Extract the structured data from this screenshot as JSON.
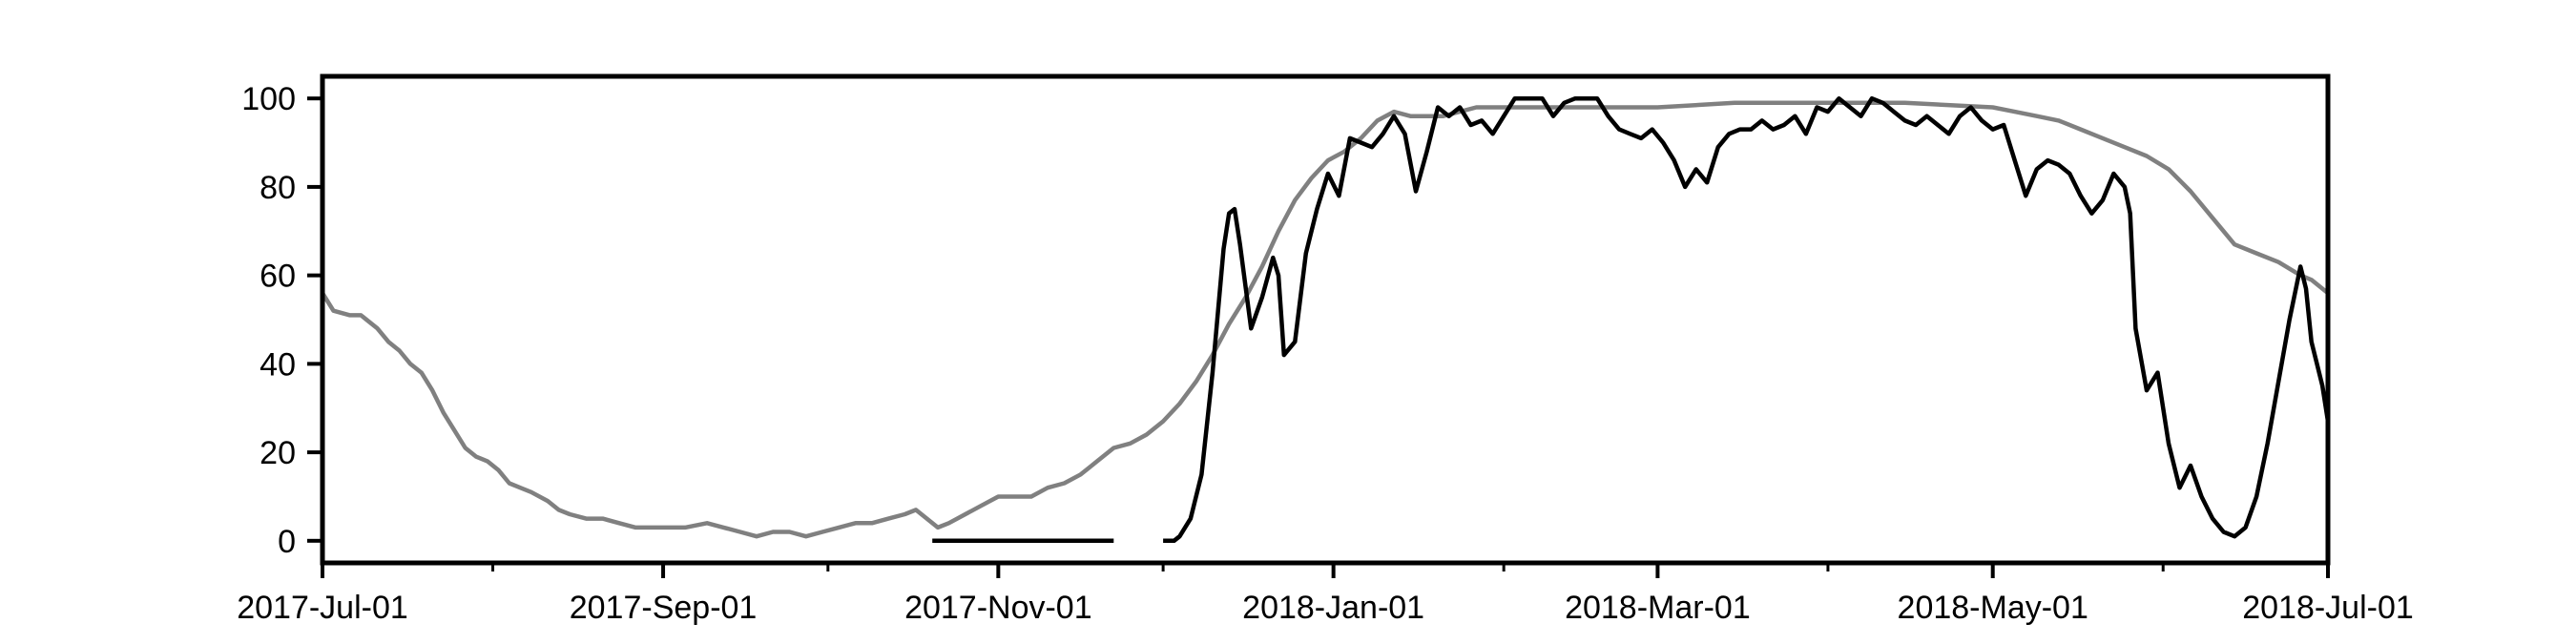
{
  "chart_data": {
    "type": "line",
    "title": "",
    "xlabel": "",
    "ylabel": "",
    "xlim": [
      "2017-07-01",
      "2018-07-01"
    ],
    "ylim": [
      -5,
      105
    ],
    "grid": false,
    "legend": "none",
    "x_tick_labels": [
      "2017-Jul-01",
      "2017-Sep-01",
      "2017-Nov-01",
      "2018-Jan-01",
      "2018-Mar-01",
      "2018-May-01",
      "2018-Jul-01"
    ],
    "x_major_ticks": [
      "2017-07-01",
      "2017-09-01",
      "2017-11-01",
      "2018-01-01",
      "2018-03-01",
      "2018-05-01",
      "2018-07-01"
    ],
    "x_minor_ticks": [
      "2017-08-01",
      "2017-10-01",
      "2017-12-01",
      "2018-02-01",
      "2018-04-01",
      "2018-06-01"
    ],
    "y_ticks": [
      0,
      20,
      40,
      60,
      80,
      100
    ],
    "series": [
      {
        "color": "#808080",
        "points": [
          [
            "2017-07-01",
            56
          ],
          [
            "2017-07-03",
            52
          ],
          [
            "2017-07-06",
            51
          ],
          [
            "2017-07-08",
            51
          ],
          [
            "2017-07-11",
            48
          ],
          [
            "2017-07-13",
            45
          ],
          [
            "2017-07-15",
            43
          ],
          [
            "2017-07-17",
            40
          ],
          [
            "2017-07-19",
            38
          ],
          [
            "2017-07-21",
            34
          ],
          [
            "2017-07-23",
            29
          ],
          [
            "2017-07-25",
            25
          ],
          [
            "2017-07-27",
            21
          ],
          [
            "2017-07-29",
            19
          ],
          [
            "2017-07-31",
            18
          ],
          [
            "2017-08-02",
            16
          ],
          [
            "2017-08-04",
            13
          ],
          [
            "2017-08-06",
            12
          ],
          [
            "2017-08-08",
            11
          ],
          [
            "2017-08-11",
            9
          ],
          [
            "2017-08-13",
            7
          ],
          [
            "2017-08-15",
            6
          ],
          [
            "2017-08-18",
            5
          ],
          [
            "2017-08-21",
            5
          ],
          [
            "2017-08-24",
            4
          ],
          [
            "2017-08-27",
            3
          ],
          [
            "2017-08-30",
            3
          ],
          [
            "2017-09-02",
            3
          ],
          [
            "2017-09-05",
            3
          ],
          [
            "2017-09-09",
            4
          ],
          [
            "2017-09-12",
            3
          ],
          [
            "2017-09-15",
            2
          ],
          [
            "2017-09-18",
            1
          ],
          [
            "2017-09-21",
            2
          ],
          [
            "2017-09-24",
            2
          ],
          [
            "2017-09-27",
            1
          ],
          [
            "2017-09-30",
            2
          ],
          [
            "2017-10-03",
            3
          ],
          [
            "2017-10-06",
            4
          ],
          [
            "2017-10-09",
            4
          ],
          [
            "2017-10-12",
            5
          ],
          [
            "2017-10-15",
            6
          ],
          [
            "2017-10-17",
            7
          ],
          [
            "2017-10-19",
            5
          ],
          [
            "2017-10-21",
            3
          ],
          [
            "2017-10-23",
            4
          ],
          [
            "2017-10-26",
            6
          ],
          [
            "2017-10-29",
            8
          ],
          [
            "2017-11-01",
            10
          ],
          [
            "2017-11-04",
            10
          ],
          [
            "2017-11-07",
            10
          ],
          [
            "2017-11-10",
            12
          ],
          [
            "2017-11-13",
            13
          ],
          [
            "2017-11-16",
            15
          ],
          [
            "2017-11-19",
            18
          ],
          [
            "2017-11-22",
            21
          ],
          [
            "2017-11-25",
            22
          ],
          [
            "2017-11-28",
            24
          ],
          [
            "2017-12-01",
            27
          ],
          [
            "2017-12-04",
            31
          ],
          [
            "2017-12-07",
            36
          ],
          [
            "2017-12-10",
            42
          ],
          [
            "2017-12-13",
            49
          ],
          [
            "2017-12-16",
            55
          ],
          [
            "2017-12-19",
            62
          ],
          [
            "2017-12-22",
            70
          ],
          [
            "2017-12-25",
            77
          ],
          [
            "2017-12-28",
            82
          ],
          [
            "2017-12-31",
            86
          ],
          [
            "2018-01-03",
            88
          ],
          [
            "2018-01-06",
            91
          ],
          [
            "2018-01-09",
            95
          ],
          [
            "2018-01-12",
            97
          ],
          [
            "2018-01-15",
            96
          ],
          [
            "2018-01-18",
            96
          ],
          [
            "2018-01-21",
            96
          ],
          [
            "2018-01-24",
            97
          ],
          [
            "2018-01-27",
            98
          ],
          [
            "2018-01-30",
            98
          ],
          [
            "2018-02-05",
            98
          ],
          [
            "2018-02-15",
            98
          ],
          [
            "2018-03-01",
            98
          ],
          [
            "2018-03-15",
            99
          ],
          [
            "2018-04-01",
            99
          ],
          [
            "2018-04-15",
            99
          ],
          [
            "2018-05-01",
            98
          ],
          [
            "2018-05-05",
            97
          ],
          [
            "2018-05-09",
            96
          ],
          [
            "2018-05-13",
            95
          ],
          [
            "2018-05-17",
            93
          ],
          [
            "2018-05-21",
            91
          ],
          [
            "2018-05-25",
            89
          ],
          [
            "2018-05-29",
            87
          ],
          [
            "2018-06-02",
            84
          ],
          [
            "2018-06-06",
            79
          ],
          [
            "2018-06-10",
            73
          ],
          [
            "2018-06-14",
            67
          ],
          [
            "2018-06-18",
            65
          ],
          [
            "2018-06-22",
            63
          ],
          [
            "2018-06-26",
            60
          ],
          [
            "2018-06-28",
            59
          ],
          [
            "2018-07-01",
            56
          ]
        ]
      },
      {
        "color": "#000000",
        "points": [
          [
            "2017-10-20",
            0
          ],
          [
            "2017-11-22",
            0
          ]
        ]
      },
      {
        "color": "#000000",
        "points": [
          [
            "2017-12-01",
            0
          ],
          [
            "2017-12-03",
            0
          ],
          [
            "2017-12-04",
            1
          ],
          [
            "2017-12-06",
            5
          ],
          [
            "2017-12-08",
            15
          ],
          [
            "2017-12-10",
            38
          ],
          [
            "2017-12-12",
            66
          ],
          [
            "2017-12-13",
            74
          ],
          [
            "2017-12-14",
            75
          ],
          [
            "2017-12-15",
            67
          ],
          [
            "2017-12-17",
            48
          ],
          [
            "2017-12-19",
            55
          ],
          [
            "2017-12-21",
            64
          ],
          [
            "2017-12-22",
            60
          ],
          [
            "2017-12-23",
            42
          ],
          [
            "2017-12-25",
            45
          ],
          [
            "2017-12-27",
            65
          ],
          [
            "2017-12-29",
            75
          ],
          [
            "2017-12-31",
            83
          ],
          [
            "2018-01-02",
            78
          ],
          [
            "2018-01-04",
            91
          ],
          [
            "2018-01-06",
            90
          ],
          [
            "2018-01-08",
            89
          ],
          [
            "2018-01-10",
            92
          ],
          [
            "2018-01-12",
            96
          ],
          [
            "2018-01-14",
            92
          ],
          [
            "2018-01-16",
            79
          ],
          [
            "2018-01-18",
            88
          ],
          [
            "2018-01-20",
            98
          ],
          [
            "2018-01-22",
            96
          ],
          [
            "2018-01-24",
            98
          ],
          [
            "2018-01-26",
            94
          ],
          [
            "2018-01-28",
            95
          ],
          [
            "2018-01-30",
            92
          ],
          [
            "2018-02-01",
            96
          ],
          [
            "2018-02-03",
            100
          ],
          [
            "2018-02-05",
            100
          ],
          [
            "2018-02-08",
            100
          ],
          [
            "2018-02-10",
            96
          ],
          [
            "2018-02-12",
            99
          ],
          [
            "2018-02-14",
            100
          ],
          [
            "2018-02-18",
            100
          ],
          [
            "2018-02-20",
            96
          ],
          [
            "2018-02-22",
            93
          ],
          [
            "2018-02-24",
            92
          ],
          [
            "2018-02-26",
            91
          ],
          [
            "2018-02-28",
            93
          ],
          [
            "2018-03-02",
            90
          ],
          [
            "2018-03-04",
            86
          ],
          [
            "2018-03-06",
            80
          ],
          [
            "2018-03-08",
            84
          ],
          [
            "2018-03-10",
            81
          ],
          [
            "2018-03-12",
            89
          ],
          [
            "2018-03-14",
            92
          ],
          [
            "2018-03-16",
            93
          ],
          [
            "2018-03-18",
            93
          ],
          [
            "2018-03-20",
            95
          ],
          [
            "2018-03-22",
            93
          ],
          [
            "2018-03-24",
            94
          ],
          [
            "2018-03-26",
            96
          ],
          [
            "2018-03-28",
            92
          ],
          [
            "2018-03-30",
            98
          ],
          [
            "2018-04-01",
            97
          ],
          [
            "2018-04-03",
            100
          ],
          [
            "2018-04-05",
            98
          ],
          [
            "2018-04-07",
            96
          ],
          [
            "2018-04-09",
            100
          ],
          [
            "2018-04-11",
            99
          ],
          [
            "2018-04-13",
            97
          ],
          [
            "2018-04-15",
            95
          ],
          [
            "2018-04-17",
            94
          ],
          [
            "2018-04-19",
            96
          ],
          [
            "2018-04-21",
            94
          ],
          [
            "2018-04-23",
            92
          ],
          [
            "2018-04-25",
            96
          ],
          [
            "2018-04-27",
            98
          ],
          [
            "2018-04-29",
            95
          ],
          [
            "2018-05-01",
            93
          ],
          [
            "2018-05-03",
            94
          ],
          [
            "2018-05-05",
            86
          ],
          [
            "2018-05-07",
            78
          ],
          [
            "2018-05-09",
            84
          ],
          [
            "2018-05-11",
            86
          ],
          [
            "2018-05-13",
            85
          ],
          [
            "2018-05-15",
            83
          ],
          [
            "2018-05-17",
            78
          ],
          [
            "2018-05-19",
            74
          ],
          [
            "2018-05-21",
            77
          ],
          [
            "2018-05-23",
            83
          ],
          [
            "2018-05-25",
            80
          ],
          [
            "2018-05-26",
            74
          ],
          [
            "2018-05-27",
            48
          ],
          [
            "2018-05-29",
            34
          ],
          [
            "2018-05-31",
            38
          ],
          [
            "2018-06-02",
            22
          ],
          [
            "2018-06-04",
            12
          ],
          [
            "2018-06-06",
            17
          ],
          [
            "2018-06-08",
            10
          ],
          [
            "2018-06-10",
            5
          ],
          [
            "2018-06-12",
            2
          ],
          [
            "2018-06-14",
            1
          ],
          [
            "2018-06-16",
            3
          ],
          [
            "2018-06-18",
            10
          ],
          [
            "2018-06-20",
            22
          ],
          [
            "2018-06-22",
            36
          ],
          [
            "2018-06-24",
            50
          ],
          [
            "2018-06-26",
            62
          ],
          [
            "2018-06-27",
            57
          ],
          [
            "2018-06-28",
            45
          ],
          [
            "2018-06-29",
            40
          ],
          [
            "2018-06-30",
            35
          ],
          [
            "2018-07-01",
            27
          ]
        ]
      }
    ]
  }
}
